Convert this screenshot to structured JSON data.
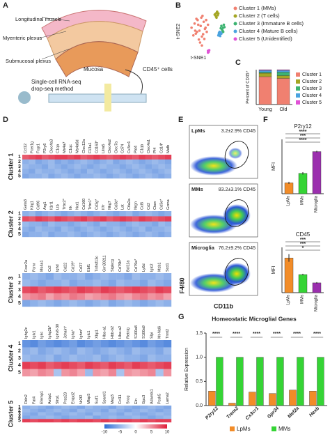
{
  "diagram": {
    "panel": "A",
    "labels": [
      "Longitudinal muscle",
      "Myenteric plexus",
      "Submucosal plexus",
      "Mucosa",
      "CD45⁺ cells",
      "Single-cell RNA-seq",
      "drop-seq method"
    ]
  },
  "chart_data": [
    {
      "type": "scatter",
      "panel": "B",
      "x_label": "t-SNE1",
      "y_label": "t-SNE2",
      "xlim": [
        -40,
        40
      ],
      "ylim": [
        -40,
        40
      ],
      "series": [
        {
          "name": "Cluster 1 (MMs)",
          "color": "#f08070",
          "x": [
            -25,
            -20,
            -18,
            -15,
            -12,
            -10,
            -8,
            -5,
            -3,
            0,
            2,
            -22,
            -17,
            -13,
            -9,
            -6,
            -2,
            -14,
            -11,
            -7,
            -19,
            -4,
            -16,
            -1,
            -8
          ],
          "values": [
            5,
            12,
            -5,
            18,
            0,
            8,
            -10,
            15,
            3,
            -2,
            10,
            -8,
            20,
            -15,
            22,
            -6,
            5,
            10,
            -20,
            25,
            0,
            -14,
            -2,
            18,
            -25
          ]
        },
        {
          "name": "Cluster 2 (T cells)",
          "color": "#a4a624",
          "x": [
            14,
            16,
            18,
            15,
            17,
            19,
            13,
            16
          ],
          "values": [
            28,
            30,
            26,
            24,
            32,
            29,
            27,
            22
          ]
        },
        {
          "name": "Cluster 3 (Immature B cells)",
          "color": "#3cb371",
          "x": [
            24,
            27,
            25,
            28,
            26,
            23,
            29,
            27
          ],
          "values": [
            8,
            5,
            2,
            10,
            0,
            4,
            6,
            -2
          ]
        },
        {
          "name": "Cluster 4 (Mature B cells)",
          "color": "#4aa3df",
          "x": [
            20,
            22,
            21,
            19,
            23,
            22,
            20,
            24
          ],
          "values": [
            -4,
            -6,
            -2,
            -8,
            -3,
            -9,
            -6,
            -5
          ]
        },
        {
          "name": "Cluster 5 (Unidentified)",
          "color": "#e052d6",
          "x": [
            2,
            3,
            4,
            3,
            2
          ],
          "values": [
            -34,
            -36,
            -33,
            -35,
            -37
          ]
        }
      ]
    },
    {
      "type": "stacked_bar",
      "panel": "C",
      "y_label": "Percent of CD45⁺",
      "categories": [
        "Young",
        "Old"
      ],
      "ylim": [
        0,
        100
      ],
      "series": [
        {
          "name": "Cluster 1",
          "color": "#f08070",
          "values": [
            80,
            75
          ]
        },
        {
          "name": "Cluster 2",
          "color": "#a4a624",
          "values": [
            10,
            8
          ]
        },
        {
          "name": "Cluster 3",
          "color": "#3cb371",
          "values": [
            3,
            10
          ]
        },
        {
          "name": "Cluster 4",
          "color": "#4aa3df",
          "values": [
            5,
            5
          ]
        },
        {
          "name": "Cluster 5",
          "color": "#e052d6",
          "values": [
            2,
            2
          ]
        }
      ]
    },
    {
      "type": "heatmap",
      "panel": "D",
      "row_labels": [
        "1",
        "2",
        "3",
        "4",
        "5"
      ],
      "zlim": [
        -10,
        10
      ],
      "colorbar_ticks": [
        -10,
        -5,
        0,
        5,
        10
      ],
      "clusters": [
        {
          "title": "Cluster 1",
          "genes": [
            "Ccl12",
            "Fcer1g",
            "Fcgr1",
            "P2ry6",
            "Clec4a3",
            "C1qa",
            "Ms4a7",
            "C1qc",
            "Ms4a6d",
            "Clec12a",
            "F13a1",
            "Cd163*",
            "Lilra5",
            "Clec4a2",
            "Clec7a",
            "Cd74",
            "Cx3cr1",
            "Pld4",
            "C1qb",
            "Clec4a1",
            "Pf4",
            "Cd14*",
            "Mafb"
          ],
          "values": [
            [
              6,
              7,
              8,
              6,
              7,
              8,
              8,
              7,
              8,
              6,
              7,
              8,
              7,
              6,
              7,
              8,
              7,
              6,
              8,
              7,
              6,
              7,
              8
            ],
            [
              -3,
              -2,
              -4,
              -3,
              -2,
              -4,
              -3,
              -4,
              -3,
              -2,
              -3,
              -4,
              -3,
              -2,
              -4,
              -3,
              -2,
              -3,
              -4,
              -3,
              -2,
              -3,
              -4
            ],
            [
              -2,
              -3,
              -3,
              -4,
              -2,
              -3,
              -4,
              -3,
              -2,
              -3,
              -4,
              -3,
              -2,
              -3,
              -3,
              -4,
              -3,
              -2,
              -3,
              -4,
              -3,
              -2,
              -3
            ],
            [
              -3,
              -4,
              -2,
              -3,
              -3,
              -2,
              -3,
              -4,
              -3,
              -4,
              -2,
              -3,
              -4,
              -3,
              -2,
              -3,
              -4,
              -3,
              -2,
              -3,
              -4,
              -3,
              -2
            ],
            [
              -4,
              -3,
              -3,
              -2,
              -4,
              -3,
              -2,
              -3,
              -4,
              -3,
              -3,
              -2,
              -3,
              -4,
              -3,
              -2,
              -3,
              -4,
              -3,
              -2,
              -3,
              -4,
              -3
            ]
          ]
        },
        {
          "title": "Cluster 2",
          "genes": [
            "Gata3",
            "Klrg1",
            "Cd96",
            "Arg1",
            "Il1rl1",
            "Ltb",
            "Trbc2*",
            "Itk",
            "Ncr1",
            "Cd160",
            "Trbc1*",
            "Cd3g*",
            "Il7r",
            "Nkg7",
            "Cd3d*",
            "Lat",
            "Ctla2a",
            "Nrgn",
            "Ccl5",
            "Cd2",
            "Ctsw",
            "Cd3e*",
            "Gzma"
          ],
          "values": [
            [
              -3,
              -2,
              -4,
              -3,
              -2,
              -3,
              -4,
              -3,
              -2,
              -3,
              -4,
              -3,
              -2,
              -3,
              -4,
              -3,
              -2,
              -4,
              -3,
              -2,
              -3,
              -4,
              -3
            ],
            [
              7,
              6,
              8,
              7,
              6,
              8,
              7,
              6,
              7,
              8,
              6,
              7,
              8,
              6,
              7,
              8,
              7,
              6,
              8,
              7,
              6,
              7,
              8
            ],
            [
              -2,
              -3,
              -3,
              -4,
              -2,
              -3,
              -3,
              -4,
              -3,
              -2,
              -3,
              -4,
              -2,
              -3,
              -3,
              -4,
              -3,
              -2,
              -3,
              -3,
              -4,
              -2,
              -3
            ],
            [
              -3,
              -4,
              -2,
              -3,
              -3,
              -4,
              -2,
              -3,
              -4,
              -3,
              -2,
              -3,
              -4,
              -3,
              -2,
              -3,
              -4,
              -3,
              -2,
              -4,
              -3,
              -3,
              -2
            ],
            [
              -4,
              -3,
              -3,
              -2,
              -4,
              -3,
              -3,
              -2,
              -3,
              -4,
              -3,
              -2,
              -3,
              -4,
              -3,
              -2,
              -3,
              -4,
              -3,
              -2,
              -3,
              -4,
              -3
            ]
          ]
        },
        {
          "title": "Cluster 3",
          "genes": [
            "Fcer2a",
            "Fcmr",
            "Ms4a1",
            "Cr2",
            "Ighd",
            "Cd22",
            "Cd19*",
            "Cd37",
            "Ebf1",
            "Tnfrsf13c",
            "Gm30211",
            "Siglecg",
            "Cd79b*",
            "Bcl11a",
            "Cd79a*",
            "Ly6d",
            "Iglc2",
            "Mzb1",
            "Scd1"
          ],
          "values": [
            [
              -3,
              -2,
              -3,
              -4,
              -2,
              -3,
              -3,
              -2,
              -4,
              -3,
              -2,
              -3,
              -3,
              -4,
              -2,
              -3,
              -3,
              -2,
              -3
            ],
            [
              -2,
              -3,
              -4,
              -3,
              -3,
              -2,
              -4,
              -3,
              -3,
              -2,
              -3,
              -4,
              -2,
              -3,
              -3,
              -4,
              -2,
              -3,
              -4
            ],
            [
              7,
              8,
              6,
              7,
              8,
              7,
              6,
              8,
              7,
              6,
              8,
              7,
              6,
              7,
              8,
              7,
              6,
              8,
              7
            ],
            [
              2,
              3,
              4,
              1,
              3,
              2,
              4,
              3,
              1,
              2,
              3,
              4,
              2,
              1,
              3,
              4,
              2,
              3,
              1
            ],
            [
              -4,
              -3,
              -2,
              -3,
              -4,
              -3,
              -2,
              -3,
              -4,
              -3,
              -2,
              -4,
              -3,
              -2,
              -3,
              -4,
              -3,
              -2,
              -3
            ]
          ]
        },
        {
          "title": "Cluster 4",
          "genes": [
            "Ighg2c",
            "Iglv1",
            "Igkc",
            "Ighg2b*",
            "Igkv8-30",
            "Jchain*",
            "Igha*",
            "Ighm*",
            "Iglc1",
            "Xbp1",
            "Hba-a1",
            "Hbb-b2",
            "Hba-a2",
            "Retnlg",
            "S100a8",
            "S100a9",
            "Slpi",
            "Mt-Nd6",
            "Tnnt2"
          ],
          "values": [
            [
              -6,
              -7,
              -5,
              -6,
              -7,
              -6,
              -5,
              -7,
              -6,
              -5,
              -6,
              -7,
              -6,
              -5,
              -6,
              -7,
              -5,
              -6,
              -7
            ],
            [
              -3,
              -2,
              -4,
              -3,
              -2,
              -3,
              -4,
              -2,
              -3,
              -4,
              -3,
              -2,
              -3,
              -4,
              -2,
              -3,
              -3,
              -4,
              -2
            ],
            [
              -2,
              -3,
              -3,
              -2,
              -4,
              -3,
              -2,
              -3,
              -3,
              -2,
              -4,
              -3,
              -2,
              -3,
              -3,
              -4,
              -2,
              -3,
              -3
            ],
            [
              8,
              7,
              8,
              6,
              7,
              8,
              7,
              6,
              8,
              7,
              6,
              8,
              7,
              6,
              8,
              7,
              6,
              7,
              8
            ],
            [
              2,
              1,
              3,
              2,
              -1,
              2,
              3,
              1,
              -2,
              2,
              1,
              3,
              -1,
              2,
              1,
              2,
              3,
              -1,
              2
            ]
          ]
        },
        {
          "title": "Cluster 5",
          "genes": [
            "Fbln2",
            "Fat4",
            "Efemp1",
            "Aebp1",
            "Sfrp1",
            "Prss23",
            "Entpd2",
            "Nr2f2",
            "Mfap5",
            "Sulf1",
            "Sparcl1",
            "Meg3",
            "Ccl11",
            "Sncg",
            "Eln",
            "Gpc3",
            "Adamts1",
            "Pcsk5",
            "Lama2"
          ],
          "values": [
            [
              -3,
              -2,
              -3,
              -4,
              -3,
              -2,
              -3,
              -4,
              -2,
              -3,
              -3,
              -4,
              -2,
              -3,
              -4,
              -3,
              -2,
              -3,
              -4
            ],
            [
              -2,
              -3,
              -4,
              -3,
              -2,
              -3,
              -4,
              -2,
              -3,
              -3,
              -4,
              -2,
              -3,
              -4,
              -3,
              -2,
              -3,
              -4,
              -3
            ],
            [
              -3,
              -4,
              -2,
              -3,
              -4,
              -3,
              -2,
              -3,
              -4,
              -2,
              -3,
              -3,
              -4,
              -2,
              -3,
              -4,
              -3,
              -2,
              -3
            ],
            [
              -4,
              -3,
              -3,
              -2,
              -3,
              -4,
              -3,
              -3,
              -2,
              -4,
              -3,
              -2,
              -3,
              -3,
              -2,
              -3,
              -4,
              -3,
              -2
            ],
            [
              8,
              7,
              8,
              8,
              7,
              8,
              7,
              8,
              8,
              7,
              8,
              7,
              8,
              8,
              7,
              8,
              7,
              8,
              8
            ]
          ]
        }
      ]
    },
    {
      "type": "density",
      "panel": "E",
      "x_label": "CD11b",
      "y_label": "F4/80",
      "panels": [
        {
          "name": "LpMs",
          "gate": "3.2±2.9% CD45"
        },
        {
          "name": "MMs",
          "gate": "83.2±3.1% CD45"
        },
        {
          "name": "Microglia",
          "gate": "76.2±9.2% CD45"
        }
      ]
    },
    {
      "type": "bar",
      "panel": "F",
      "title": "P2ry12",
      "y_label": "MFI",
      "categories": [
        "LpMs",
        "MMs",
        "Microglia"
      ],
      "colors": [
        "#f28c28",
        "#35d435",
        "#9b2fae"
      ],
      "values": [
        800,
        1500,
        3100
      ],
      "errors": [
        80,
        90,
        60
      ],
      "ylim": [
        0,
        4000
      ],
      "significance": [
        "****",
        "***",
        "****"
      ]
    },
    {
      "type": "bar",
      "title": "CD45",
      "y_label": "MFI",
      "categories": [
        "LpMs",
        "MMs",
        "Microglia"
      ],
      "colors": [
        "#f28c28",
        "#35d435",
        "#9b2fae"
      ],
      "values": [
        230,
        120,
        65
      ],
      "errors": [
        25,
        5,
        5
      ],
      "ylim": [
        0,
        300
      ],
      "significance": [
        "***",
        "***",
        "*"
      ]
    },
    {
      "type": "grouped_bar",
      "panel": "G",
      "title": "Homeostatic Microglial Genes",
      "y_label": "Relative Expression",
      "categories": [
        "P2ry12",
        "Trem2",
        "Cx3cr1",
        "Gpr34",
        "Mef2a",
        "Hexb"
      ],
      "ylim": [
        0,
        1.5
      ],
      "yticks": [
        {
          "value": 0,
          "label": "0.0"
        },
        {
          "value": 0.5,
          "label": "0.5"
        },
        {
          "value": 1,
          "label": "1.0"
        },
        {
          "value": 1.5,
          "label": "1.5"
        }
      ],
      "series": [
        {
          "name": "LpMs",
          "color": "#f28c28",
          "values": [
            0.3,
            0.05,
            0.28,
            0.25,
            0.32,
            0.3
          ]
        },
        {
          "name": "MMs",
          "color": "#35d435",
          "values": [
            1,
            1,
            1,
            1,
            1,
            1
          ]
        }
      ],
      "significance": [
        "****",
        "****",
        "****",
        "****",
        "****",
        "****"
      ]
    }
  ]
}
